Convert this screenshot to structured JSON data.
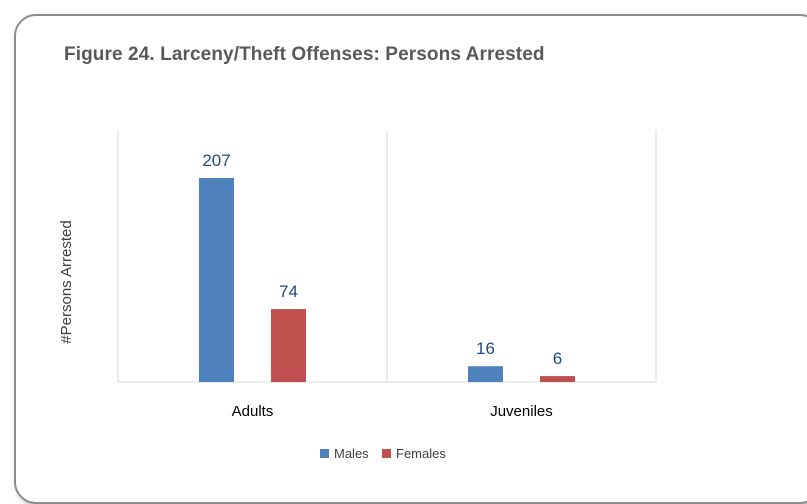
{
  "chart_data": {
    "type": "bar",
    "title": "Figure 24. Larceny/Theft Offenses:  Persons Arrested",
    "xlabel": "",
    "ylabel": "#Persons Arrested",
    "categories": [
      "Adults",
      "Juveniles"
    ],
    "series": [
      {
        "name": "Males",
        "values": [
          207,
          16
        ],
        "color": "#4f81bd"
      },
      {
        "name": "Females",
        "values": [
          74,
          6
        ],
        "color": "#c0504d"
      }
    ],
    "ylim": [
      0,
      230
    ],
    "grid": false,
    "legend_position": "bottom",
    "data_labels": true
  }
}
